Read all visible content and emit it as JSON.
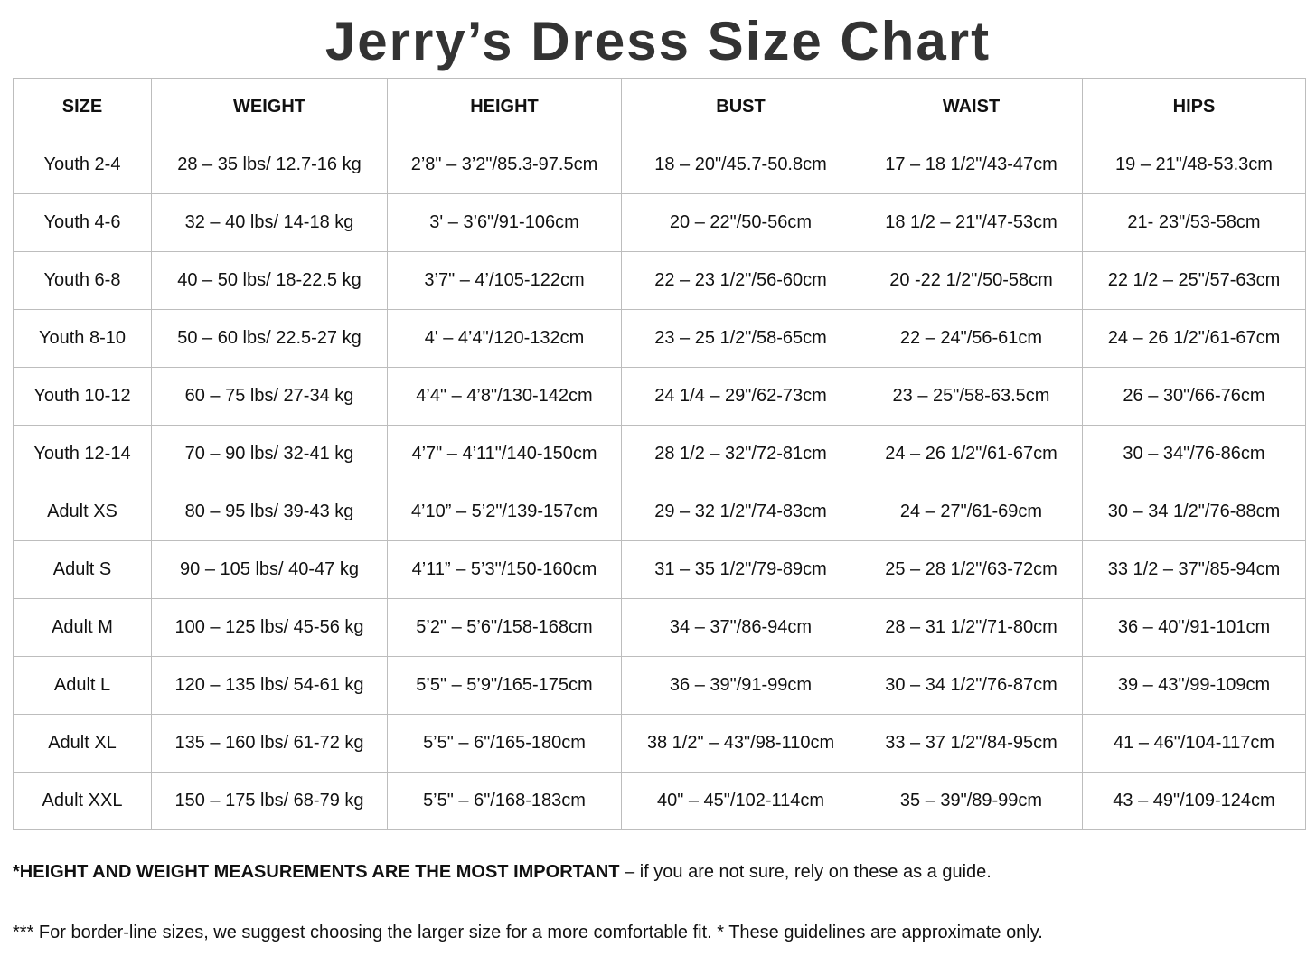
{
  "title": "Jerry’s Dress Size Chart",
  "table": {
    "headers": [
      "SIZE",
      "WEIGHT",
      "HEIGHT",
      "BUST",
      "WAIST",
      "HIPS"
    ],
    "rows": [
      [
        "Youth 2-4",
        "28 – 35 lbs/ 12.7-16 kg",
        "2’8\" – 3’2\"/85.3-97.5cm",
        "18 – 20\"/45.7-50.8cm",
        "17 – 18 1/2\"/43-47cm",
        "19 – 21\"/48-53.3cm"
      ],
      [
        "Youth 4-6",
        "32 – 40 lbs/ 14-18 kg",
        "3' – 3’6\"/91-106cm",
        "20 – 22\"/50-56cm",
        "18 1/2 – 21\"/47-53cm",
        "21- 23\"/53-58cm"
      ],
      [
        "Youth 6-8",
        "40 – 50 lbs/ 18-22.5 kg",
        "3’7\" – 4’/105-122cm",
        "22 – 23 1/2\"/56-60cm",
        "20 -22 1/2\"/50-58cm",
        "22 1/2 – 25\"/57-63cm"
      ],
      [
        "Youth 8-10",
        "50 – 60 lbs/ 22.5-27 kg",
        "4' – 4’4\"/120-132cm",
        "23 – 25 1/2\"/58-65cm",
        "22 – 24\"/56-61cm",
        "24 – 26 1/2\"/61-67cm"
      ],
      [
        "Youth 10-12",
        "60 – 75 lbs/ 27-34 kg",
        "4’4\" – 4’8\"/130-142cm",
        "24 1/4 – 29\"/62-73cm",
        "23 – 25\"/58-63.5cm",
        "26 – 30\"/66-76cm"
      ],
      [
        "Youth 12-14",
        "70 – 90 lbs/ 32-41 kg",
        "4’7\" – 4’11\"/140-150cm",
        "28 1/2 – 32\"/72-81cm",
        "24 – 26 1/2\"/61-67cm",
        "30 – 34\"/76-86cm"
      ],
      [
        "Adult XS",
        "80 – 95 lbs/ 39-43 kg",
        "4’10” – 5’2\"/139-157cm",
        "29 – 32 1/2\"/74-83cm",
        "24 – 27\"/61-69cm",
        "30 – 34 1/2\"/76-88cm"
      ],
      [
        "Adult S",
        "90 – 105 lbs/ 40-47 kg",
        "4’11” – 5’3\"/150-160cm",
        "31 – 35 1/2\"/79-89cm",
        "25 – 28 1/2\"/63-72cm",
        "33 1/2 – 37\"/85-94cm"
      ],
      [
        "Adult M",
        "100 – 125 lbs/ 45-56 kg",
        "5’2\" – 5’6\"/158-168cm",
        "34 – 37\"/86-94cm",
        "28 – 31 1/2\"/71-80cm",
        "36 – 40\"/91-101cm"
      ],
      [
        "Adult L",
        "120 – 135 lbs/ 54-61 kg",
        "5’5\" – 5’9\"/165-175cm",
        "36 – 39\"/91-99cm",
        "30 – 34 1/2\"/76-87cm",
        "39 – 43\"/99-109cm"
      ],
      [
        "Adult XL",
        "135 – 160 lbs/ 61-72 kg",
        "5’5\" – 6\"/165-180cm",
        "38 1/2\" – 43\"/98-110cm",
        "33 – 37 1/2\"/84-95cm",
        "41 – 46\"/104-117cm"
      ],
      [
        "Adult XXL",
        "150 – 175 lbs/ 68-79 kg",
        "5’5\" – 6\"/168-183cm",
        "40\" – 45\"/102-114cm",
        "35 – 39\"/89-99cm",
        "43 – 49\"/109-124cm"
      ]
    ]
  },
  "notes": {
    "note1_bold": "*HEIGHT AND WEIGHT MEASUREMENTS ARE THE MOST IMPORTANT",
    "note1_rest": " – if you are not sure, rely on these as a guide.",
    "note2": "*** For border-line sizes, we suggest choosing the larger size for a more comfortable fit. * These guidelines are approximate only."
  }
}
